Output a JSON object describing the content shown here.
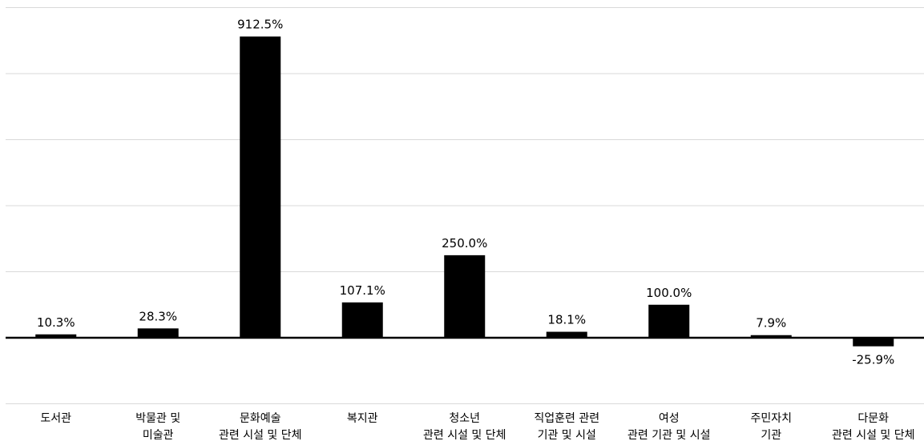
{
  "chart_data": {
    "type": "bar",
    "title": "",
    "xlabel": "",
    "ylabel": "",
    "categories": [
      [
        "도서관"
      ],
      [
        "박물관 및",
        "미술관"
      ],
      [
        "문화예술",
        "관련 시설 및 단체"
      ],
      [
        "복지관"
      ],
      [
        "청소년",
        "관련 시설 및 단체"
      ],
      [
        "직업훈련 관련",
        "기관 및 시설"
      ],
      [
        "여성",
        "관련 기관 및 시설"
      ],
      [
        "주민자치",
        "기관"
      ],
      [
        "다문화",
        "관련 시설 및 단체"
      ]
    ],
    "values": [
      10.3,
      28.3,
      912.5,
      107.1,
      250.0,
      18.1,
      100.0,
      7.9,
      -25.9
    ],
    "value_labels": [
      "10.3%",
      "28.3%",
      "912.5%",
      "107.1%",
      "250.0%",
      "18.1%",
      "100.0%",
      "7.9%",
      "-25.9%"
    ],
    "ylim": [
      -200,
      1000
    ],
    "gridlines": [
      -200,
      200,
      400,
      600,
      800,
      1000
    ],
    "grid": true,
    "bar_color": "#000000",
    "grid_color": "#d9d9d9",
    "axis_color": "#000000"
  }
}
